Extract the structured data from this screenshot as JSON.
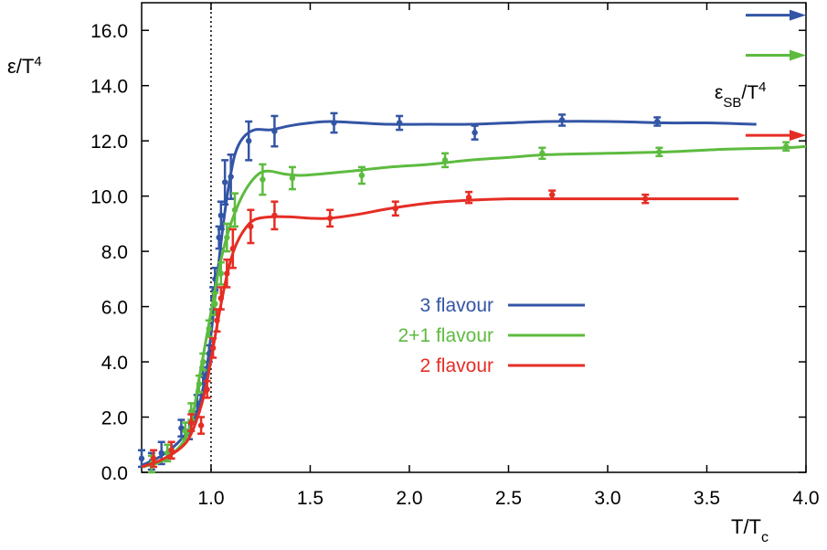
{
  "chart_data": {
    "type": "line",
    "xlabel": {
      "main": "T/T",
      "sub": "c"
    },
    "ylabel": {
      "main": "ε/T",
      "sup": "4"
    },
    "xlim": [
      0.65,
      4.0
    ],
    "ylim": [
      0.0,
      17.0
    ],
    "x_ticks": [
      {
        "value": 1.0,
        "label": "1.0"
      },
      {
        "value": 1.5,
        "label": "1.5"
      },
      {
        "value": 2.0,
        "label": "2.0"
      },
      {
        "value": 2.5,
        "label": "2.5"
      },
      {
        "value": 3.0,
        "label": "3.0"
      },
      {
        "value": 3.5,
        "label": "3.5"
      },
      {
        "value": 4.0,
        "label": "4.0"
      }
    ],
    "y_ticks": [
      {
        "value": 0,
        "label": "0.0"
      },
      {
        "value": 2,
        "label": "2.0"
      },
      {
        "value": 4,
        "label": "4.0"
      },
      {
        "value": 6,
        "label": "6.0"
      },
      {
        "value": 8,
        "label": "8.0"
      },
      {
        "value": 10,
        "label": "10.0"
      },
      {
        "value": 12,
        "label": "12.0"
      },
      {
        "value": 14,
        "label": "14.0"
      },
      {
        "value": 16,
        "label": "16.0"
      }
    ],
    "vertical_line_x": 1.0,
    "grid": false,
    "legend_position": "center",
    "sb_label": {
      "main": "ε",
      "sub": "SB",
      "mid": "/T",
      "sup": "4"
    },
    "series": [
      {
        "name": "3 flavour",
        "color": "#3355a5",
        "sb_limit": 16.55,
        "curve": [
          [
            0.65,
            0.25
          ],
          [
            0.75,
            0.6
          ],
          [
            0.85,
            1.2
          ],
          [
            0.92,
            2.0
          ],
          [
            0.97,
            3.4
          ],
          [
            1.0,
            5.0
          ],
          [
            1.03,
            7.0
          ],
          [
            1.06,
            8.9
          ],
          [
            1.09,
            10.4
          ],
          [
            1.12,
            11.5
          ],
          [
            1.16,
            12.1
          ],
          [
            1.22,
            12.4
          ],
          [
            1.3,
            12.4
          ],
          [
            1.4,
            12.55
          ],
          [
            1.5,
            12.65
          ],
          [
            1.6,
            12.7
          ],
          [
            1.75,
            12.65
          ],
          [
            1.9,
            12.6
          ],
          [
            2.1,
            12.6
          ],
          [
            2.3,
            12.6
          ],
          [
            2.5,
            12.65
          ],
          [
            2.7,
            12.7
          ],
          [
            3.0,
            12.7
          ],
          [
            3.3,
            12.65
          ],
          [
            3.5,
            12.65
          ],
          [
            3.75,
            12.6
          ]
        ],
        "points": [
          {
            "x": 0.65,
            "y": 0.5,
            "err": 0.3
          },
          {
            "x": 0.7,
            "y": 0.4,
            "err": 0.3
          },
          {
            "x": 0.75,
            "y": 0.7,
            "err": 0.4
          },
          {
            "x": 0.8,
            "y": 0.8,
            "err": 0.3
          },
          {
            "x": 0.85,
            "y": 1.6,
            "err": 0.3
          },
          {
            "x": 0.89,
            "y": 1.5,
            "err": 0.3
          },
          {
            "x": 0.93,
            "y": 2.5,
            "err": 0.3
          },
          {
            "x": 0.96,
            "y": 3.5,
            "err": 0.3
          },
          {
            "x": 0.99,
            "y": 4.3,
            "err": 0.3
          },
          {
            "x": 1.01,
            "y": 6.3,
            "err": 0.4
          },
          {
            "x": 1.02,
            "y": 7.0,
            "err": 0.4
          },
          {
            "x": 1.04,
            "y": 8.5,
            "err": 0.4
          },
          {
            "x": 1.05,
            "y": 9.3,
            "err": 0.5
          },
          {
            "x": 1.07,
            "y": 10.5,
            "err": 0.8
          },
          {
            "x": 1.1,
            "y": 10.7,
            "err": 0.8
          },
          {
            "x": 1.19,
            "y": 12.0,
            "err": 0.7
          },
          {
            "x": 1.32,
            "y": 12.35,
            "err": 0.55
          },
          {
            "x": 1.62,
            "y": 12.65,
            "err": 0.35
          },
          {
            "x": 1.95,
            "y": 12.65,
            "err": 0.25
          },
          {
            "x": 2.33,
            "y": 12.3,
            "err": 0.25
          },
          {
            "x": 2.77,
            "y": 12.75,
            "err": 0.2
          },
          {
            "x": 3.25,
            "y": 12.7,
            "err": 0.15
          }
        ]
      },
      {
        "name": "2+1 flavour",
        "color": "#5dbb3f",
        "sb_limit": 15.1,
        "curve": [
          [
            0.65,
            0.2
          ],
          [
            0.75,
            0.4
          ],
          [
            0.85,
            1.0
          ],
          [
            0.9,
            1.8
          ],
          [
            0.94,
            3.4
          ],
          [
            0.97,
            4.6
          ],
          [
            1.0,
            5.8
          ],
          [
            1.03,
            7.0
          ],
          [
            1.06,
            8.0
          ],
          [
            1.1,
            9.0
          ],
          [
            1.15,
            9.9
          ],
          [
            1.2,
            10.5
          ],
          [
            1.25,
            10.85
          ],
          [
            1.3,
            10.9
          ],
          [
            1.37,
            10.8
          ],
          [
            1.45,
            10.75
          ],
          [
            1.55,
            10.8
          ],
          [
            1.7,
            10.9
          ],
          [
            1.9,
            11.05
          ],
          [
            2.1,
            11.15
          ],
          [
            2.3,
            11.3
          ],
          [
            2.5,
            11.4
          ],
          [
            2.7,
            11.5
          ],
          [
            3.0,
            11.55
          ],
          [
            3.3,
            11.6
          ],
          [
            3.6,
            11.7
          ],
          [
            3.9,
            11.75
          ],
          [
            4.0,
            11.8
          ]
        ],
        "points": [
          {
            "x": 0.7,
            "y": 0.3,
            "err": 0.3
          },
          {
            "x": 0.78,
            "y": 0.7,
            "err": 0.3
          },
          {
            "x": 0.87,
            "y": 1.5,
            "err": 0.3
          },
          {
            "x": 0.9,
            "y": 2.2,
            "err": 0.3
          },
          {
            "x": 0.94,
            "y": 3.2,
            "err": 0.3
          },
          {
            "x": 0.96,
            "y": 4.0,
            "err": 0.3
          },
          {
            "x": 0.99,
            "y": 5.2,
            "err": 0.3
          },
          {
            "x": 1.02,
            "y": 6.1,
            "err": 0.4
          },
          {
            "x": 1.05,
            "y": 7.2,
            "err": 0.4
          },
          {
            "x": 1.08,
            "y": 8.5,
            "err": 0.5
          },
          {
            "x": 1.12,
            "y": 9.5,
            "err": 0.6
          },
          {
            "x": 1.26,
            "y": 10.6,
            "err": 0.55
          },
          {
            "x": 1.41,
            "y": 10.65,
            "err": 0.4
          },
          {
            "x": 1.76,
            "y": 10.75,
            "err": 0.3
          },
          {
            "x": 2.18,
            "y": 11.3,
            "err": 0.25
          },
          {
            "x": 2.67,
            "y": 11.55,
            "err": 0.2
          },
          {
            "x": 3.26,
            "y": 11.6,
            "err": 0.15
          },
          {
            "x": 3.9,
            "y": 11.8,
            "err": 0.15
          }
        ]
      },
      {
        "name": "2 flavour",
        "color": "#e52d24",
        "sb_limit": 12.2,
        "curve": [
          [
            0.65,
            0.2
          ],
          [
            0.75,
            0.45
          ],
          [
            0.85,
            0.9
          ],
          [
            0.9,
            1.4
          ],
          [
            0.95,
            2.4
          ],
          [
            0.98,
            3.3
          ],
          [
            1.01,
            4.5
          ],
          [
            1.04,
            5.7
          ],
          [
            1.07,
            6.8
          ],
          [
            1.1,
            7.7
          ],
          [
            1.13,
            8.3
          ],
          [
            1.17,
            8.8
          ],
          [
            1.22,
            9.15
          ],
          [
            1.3,
            9.25
          ],
          [
            1.4,
            9.25
          ],
          [
            1.5,
            9.2
          ],
          [
            1.6,
            9.2
          ],
          [
            1.75,
            9.35
          ],
          [
            1.9,
            9.55
          ],
          [
            2.1,
            9.75
          ],
          [
            2.3,
            9.85
          ],
          [
            2.5,
            9.9
          ],
          [
            2.7,
            9.9
          ],
          [
            3.0,
            9.9
          ],
          [
            3.3,
            9.9
          ],
          [
            3.66,
            9.9
          ]
        ],
        "points": [
          {
            "x": 0.71,
            "y": 0.5,
            "err": 0.3
          },
          {
            "x": 0.8,
            "y": 0.8,
            "err": 0.3
          },
          {
            "x": 0.9,
            "y": 1.8,
            "err": 0.3
          },
          {
            "x": 0.95,
            "y": 1.7,
            "err": 0.3
          },
          {
            "x": 0.98,
            "y": 3.0,
            "err": 0.3
          },
          {
            "x": 1.01,
            "y": 4.5,
            "err": 0.35
          },
          {
            "x": 1.03,
            "y": 5.5,
            "err": 0.4
          },
          {
            "x": 1.05,
            "y": 6.3,
            "err": 0.4
          },
          {
            "x": 1.08,
            "y": 7.2,
            "err": 0.5
          },
          {
            "x": 1.11,
            "y": 8.1,
            "err": 0.7
          },
          {
            "x": 1.2,
            "y": 8.9,
            "err": 0.6
          },
          {
            "x": 1.32,
            "y": 9.3,
            "err": 0.5
          },
          {
            "x": 1.6,
            "y": 9.2,
            "err": 0.3
          },
          {
            "x": 1.93,
            "y": 9.55,
            "err": 0.25
          },
          {
            "x": 2.3,
            "y": 9.95,
            "err": 0.2
          },
          {
            "x": 2.72,
            "y": 10.05,
            "err": 0.15
          },
          {
            "x": 3.19,
            "y": 9.9,
            "err": 0.15
          }
        ]
      }
    ]
  }
}
